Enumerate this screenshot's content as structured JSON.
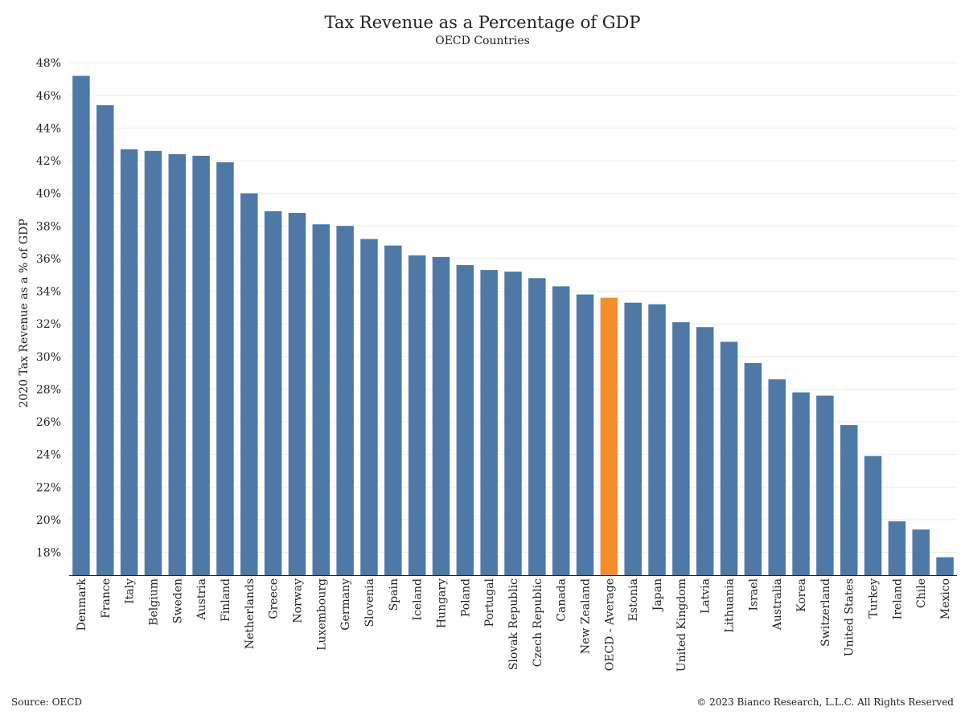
{
  "header": {
    "title": "Tax Revenue as a Percentage of GDP",
    "subtitle": "OECD Countries"
  },
  "footer": {
    "source": "Source: OECD",
    "copyright": "© 2023 Bianco Research, L.L.C. All Rights Reserved"
  },
  "colors": {
    "bar": "#4e79a7",
    "highlight": "#f28e2b",
    "grid": "#ececec",
    "axis": "#222222"
  },
  "chart_data": {
    "type": "bar",
    "title": "Tax Revenue as a Percentage of GDP",
    "subtitle": "OECD Countries",
    "xlabel": "",
    "ylabel": "2020 Tax Revenue as a % of GDP",
    "ylim": [
      16.6,
      48.4
    ],
    "yticks": [
      18,
      20,
      22,
      24,
      26,
      28,
      30,
      32,
      34,
      36,
      38,
      40,
      42,
      44,
      46,
      48
    ],
    "ytick_labels": [
      "18%",
      "20%",
      "22%",
      "24%",
      "26%",
      "28%",
      "30%",
      "32%",
      "34%",
      "36%",
      "38%",
      "40%",
      "42%",
      "44%",
      "46%",
      "48%"
    ],
    "grid": "horizontal",
    "highlight_category": "OECD - Average",
    "categories": [
      "Denmark",
      "France",
      "Italy",
      "Belgium",
      "Sweden",
      "Austria",
      "Finland",
      "Netherlands",
      "Greece",
      "Norway",
      "Luxembourg",
      "Germany",
      "Slovenia",
      "Spain",
      "Iceland",
      "Hungary",
      "Poland",
      "Portugal",
      "Slovak Republic",
      "Czech Republic",
      "Canada",
      "New Zealand",
      "OECD - Average",
      "Estonia",
      "Japan",
      "United Kingdom",
      "Latvia",
      "Lithuania",
      "Israel",
      "Australia",
      "Korea",
      "Switzerland",
      "United States",
      "Turkey",
      "Ireland",
      "Chile",
      "Mexico"
    ],
    "values": [
      47.2,
      45.4,
      42.7,
      42.6,
      42.4,
      42.3,
      41.9,
      40.0,
      38.9,
      38.8,
      38.1,
      38.0,
      37.2,
      36.8,
      36.2,
      36.1,
      35.6,
      35.3,
      35.2,
      34.8,
      34.3,
      33.8,
      33.6,
      33.3,
      33.2,
      32.1,
      31.8,
      30.9,
      29.6,
      28.6,
      27.8,
      27.6,
      25.8,
      23.9,
      19.9,
      19.4,
      17.7
    ]
  }
}
